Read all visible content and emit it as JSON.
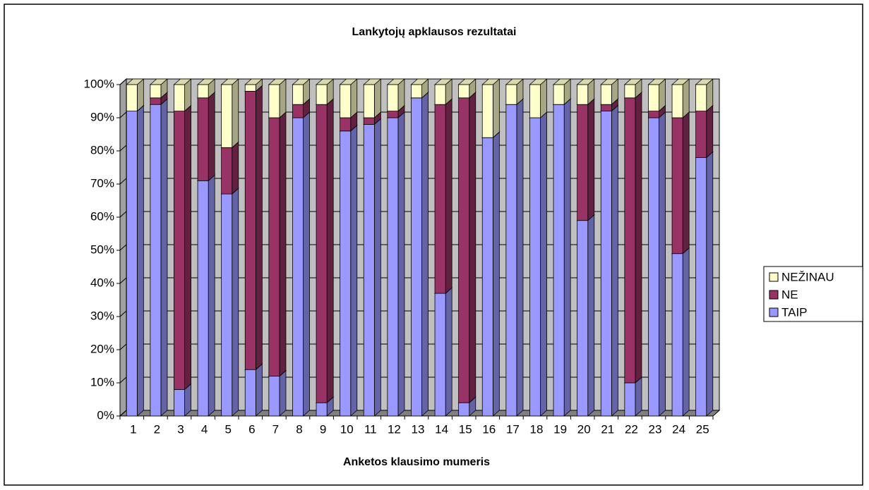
{
  "chart_data": {
    "type": "stacked_bar_3d",
    "title": "Lankytojų apklausos rezultatai",
    "x_label": "Anketos klausimo mumeris",
    "categories": [
      "1",
      "2",
      "3",
      "4",
      "5",
      "6",
      "7",
      "8",
      "9",
      "10",
      "11",
      "12",
      "13",
      "14",
      "15",
      "16",
      "17",
      "18",
      "19",
      "20",
      "21",
      "22",
      "23",
      "24",
      "25"
    ],
    "series": [
      {
        "name": "TAIP",
        "color": "#9999ff",
        "values": [
          92,
          94,
          8,
          71,
          67,
          14,
          12,
          90,
          4,
          86,
          88,
          90,
          96,
          37,
          4,
          84,
          94,
          90,
          94,
          59,
          92,
          10,
          90,
          49,
          78
        ]
      },
      {
        "name": "NE",
        "color": "#993366",
        "values": [
          0,
          2,
          84,
          25,
          14,
          84,
          78,
          4,
          90,
          4,
          2,
          2,
          0,
          57,
          92,
          0,
          0,
          0,
          0,
          35,
          2,
          86,
          2,
          41,
          14
        ]
      },
      {
        "name": "NEŽINAU",
        "color": "#ffffcc",
        "values": [
          8,
          4,
          8,
          4,
          19,
          2,
          10,
          6,
          6,
          10,
          10,
          8,
          4,
          6,
          4,
          16,
          6,
          10,
          6,
          6,
          6,
          4,
          8,
          10,
          8
        ]
      }
    ],
    "ylim": [
      0,
      100
    ],
    "yticks": [
      {
        "value": 0,
        "label": "0%"
      },
      {
        "value": 10,
        "label": "10%"
      },
      {
        "value": 20,
        "label": "20%"
      },
      {
        "value": 30,
        "label": "30%"
      },
      {
        "value": 40,
        "label": "40%"
      },
      {
        "value": 50,
        "label": "50%"
      },
      {
        "value": 60,
        "label": "60%"
      },
      {
        "value": 70,
        "label": "70%"
      },
      {
        "value": 80,
        "label": "80%"
      },
      {
        "value": 90,
        "label": "90%"
      },
      {
        "value": 100,
        "label": "100%"
      }
    ],
    "grid": true,
    "legend": "right",
    "plot_background": "#c0c0c0"
  }
}
